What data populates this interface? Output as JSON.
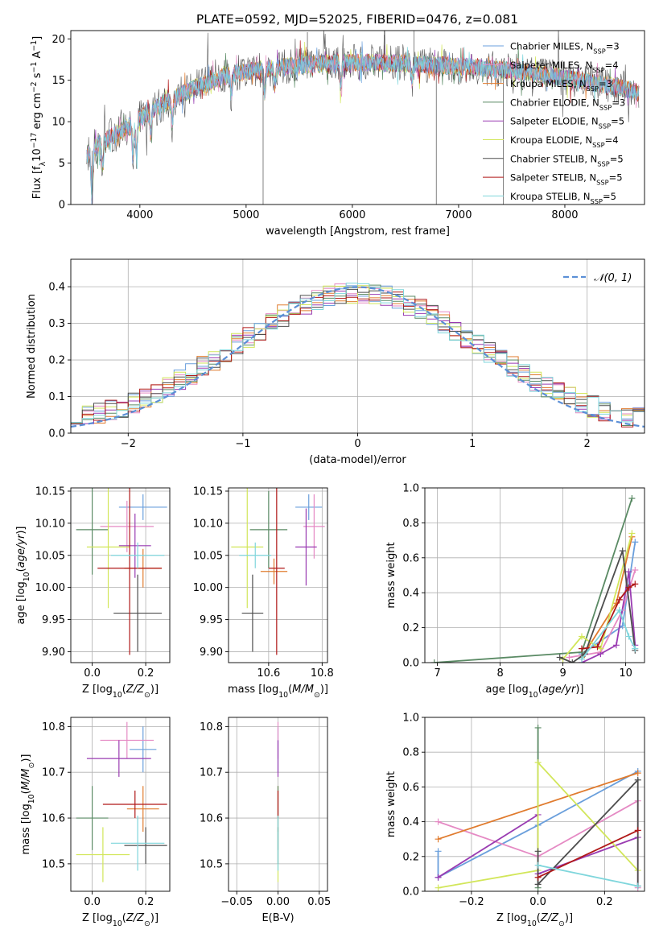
{
  "figure_title": "PLATE=0592, MJD=52025, FIBERID=0476, z=0.081",
  "colors": {
    "Chabrier MILES": "#6a9fdc",
    "Salpeter MILES": "#e58ac4",
    "Kroupa MILES": "#e07b2e",
    "Chabrier ELODIE": "#5a8a64",
    "Salpeter ELODIE": "#9a3cb2",
    "Kroupa ELODIE": "#d2e65a",
    "Chabrier STELIB": "#4d4d4d",
    "Salpeter STELIB": "#b01818",
    "Kroupa STELIB": "#7fd6dc",
    "normal_curve": "#5b8fd6",
    "grid": "#b0b0b0"
  },
  "chart_data": [
    {
      "id": "spectrum",
      "type": "line",
      "title": "PLATE=0592, MJD=52025, FIBERID=0476, z=0.081",
      "xlabel": "wavelength [Angstrom, rest frame]",
      "ylabel": "Flux [f_λ 10^-17 erg cm^-2 s^-1 A^-1]",
      "xlim": [
        3350,
        8750
      ],
      "ylim": [
        0,
        21
      ],
      "xticks": [
        4000,
        5000,
        6000,
        7000,
        8000
      ],
      "yticks": [
        0,
        5,
        10,
        15,
        20
      ],
      "grid": false,
      "legend_position": "right",
      "legend": [
        {
          "model": "Chabrier MILES",
          "imf": "Chabrier",
          "lib": "MILES",
          "n": "3"
        },
        {
          "model": "Salpeter MILES",
          "imf": "Salpeter",
          "lib": "MILES",
          "n": "4"
        },
        {
          "model": "Kroupa MILES",
          "imf": "Kroupa",
          "lib": "MILES",
          "n": "3"
        },
        {
          "model": "Chabrier ELODIE",
          "imf": "Chabrier",
          "lib": "ELODIE",
          "n": "3"
        },
        {
          "model": "Salpeter ELODIE",
          "imf": "Salpeter",
          "lib": "ELODIE",
          "n": "5"
        },
        {
          "model": "Kroupa ELODIE",
          "imf": "Kroupa",
          "lib": "ELODIE",
          "n": "4"
        },
        {
          "model": "Chabrier STELIB",
          "imf": "Chabrier",
          "lib": "STELIB",
          "n": "5"
        },
        {
          "model": "Salpeter STELIB",
          "imf": "Salpeter",
          "lib": "STELIB",
          "n": "5"
        },
        {
          "model": "Kroupa STELIB",
          "imf": "Kroupa",
          "lib": "STELIB",
          "n": "5"
        }
      ],
      "continuum": [
        [
          3500,
          6.0
        ],
        [
          3700,
          8.0
        ],
        [
          3900,
          9.5
        ],
        [
          4000,
          10.5
        ],
        [
          4200,
          12.0
        ],
        [
          4500,
          14.0
        ],
        [
          4800,
          15.5
        ],
        [
          5100,
          16.3
        ],
        [
          5500,
          16.8
        ],
        [
          6000,
          17.2
        ],
        [
          6500,
          17.0
        ],
        [
          7000,
          16.7
        ],
        [
          7500,
          16.2
        ],
        [
          8000,
          15.3
        ],
        [
          8500,
          14.2
        ],
        [
          8700,
          13.5
        ]
      ],
      "absorption_features": [
        {
          "x": 3550,
          "depth": 6
        },
        {
          "x": 3650,
          "depth": 3
        },
        {
          "x": 3934,
          "depth": 4
        },
        {
          "x": 3969,
          "depth": 4
        },
        {
          "x": 4102,
          "depth": 2.5
        },
        {
          "x": 4304,
          "depth": 3
        },
        {
          "x": 4861,
          "depth": 2.5
        },
        {
          "x": 5175,
          "depth": 3
        },
        {
          "x": 5270,
          "depth": 2
        },
        {
          "x": 5893,
          "depth": 3
        },
        {
          "x": 6563,
          "depth": 2
        }
      ],
      "spikes": [
        {
          "x": 3550,
          "to": 0
        },
        {
          "x": 5160,
          "to": 0
        },
        {
          "x": 5577,
          "to": 20.8
        },
        {
          "x": 6300,
          "to": 20.5
        },
        {
          "x": 6580,
          "to": 21
        },
        {
          "x": 6790,
          "to": 0
        },
        {
          "x": 7420,
          "to": 0
        }
      ]
    },
    {
      "id": "residuals",
      "type": "histogram",
      "xlabel": "(data-model)/error",
      "ylabel": "Normed distribution",
      "xlim": [
        -2.5,
        2.5
      ],
      "ylim": [
        0,
        0.475
      ],
      "xticks": [
        -2,
        -1,
        0,
        1,
        2
      ],
      "yticks": [
        0.0,
        0.1,
        0.2,
        0.3,
        0.4
      ],
      "grid": true,
      "bins": {
        "start": -2.5,
        "width": 0.1,
        "count": 50
      },
      "legend": [
        {
          "label": "𝒩(0, 1)"
        }
      ],
      "legend_position": "top-right",
      "reference_curve": "normal pdf, mean 0, sigma 1"
    },
    {
      "id": "z_age",
      "type": "errorbar",
      "xlabel": "Z [log10(Z/Z⊙)]",
      "ylabel": "age [log10(age/yr)]",
      "xlim": [
        -0.08,
        0.29
      ],
      "ylim": [
        9.883,
        10.155
      ],
      "xticks": [
        0.0,
        0.2
      ],
      "yticks": [
        9.9,
        9.95,
        10.0,
        10.05,
        10.1,
        10.15
      ],
      "grid": true,
      "points": [
        {
          "model": "Chabrier MILES",
          "x": 0.19,
          "xerr": 0.09,
          "y": 10.125,
          "yerr": 0.02
        },
        {
          "model": "Salpeter MILES",
          "x": 0.13,
          "xerr": 0.1,
          "y": 10.095,
          "yerr": 0.04
        },
        {
          "model": "Kroupa MILES",
          "x": 0.19,
          "xerr": 0.07,
          "y": 10.03,
          "yerr": 0.03
        },
        {
          "model": "Chabrier ELODIE",
          "x": 0.0,
          "xerr": 0.06,
          "y": 10.09,
          "yerr": 0.07
        },
        {
          "model": "Salpeter ELODIE",
          "x": 0.16,
          "xerr": 0.06,
          "y": 10.065,
          "yerr": 0.05
        },
        {
          "model": "Kroupa ELODIE",
          "x": 0.06,
          "xerr": 0.08,
          "y": 10.063,
          "yerr": 0.095
        },
        {
          "model": "Chabrier STELIB",
          "x": 0.17,
          "xerr": 0.09,
          "y": 9.96,
          "yerr": 0.06
        },
        {
          "model": "Salpeter STELIB",
          "x": 0.14,
          "xerr": 0.12,
          "y": 10.03,
          "yerr": 0.135
        },
        {
          "model": "Kroupa STELIB",
          "x": 0.17,
          "xerr": 0.1,
          "y": 10.05,
          "yerr": 0.02
        }
      ]
    },
    {
      "id": "mass_age",
      "type": "errorbar",
      "xlabel": "mass [log10(M/M⊙)]",
      "ylabel": "",
      "xlim": [
        10.45,
        10.82
      ],
      "ylim": [
        9.883,
        10.155
      ],
      "xticks": [
        10.6,
        10.8
      ],
      "yticks": [
        9.9,
        9.95,
        10.0,
        10.05,
        10.1,
        10.15
      ],
      "grid": true,
      "points": [
        {
          "model": "Chabrier MILES",
          "x": 10.75,
          "xerr": 0.05,
          "y": 10.125,
          "yerr": 0.02
        },
        {
          "model": "Salpeter MILES",
          "x": 10.77,
          "xerr": 0.04,
          "y": 10.095,
          "yerr": 0.05
        },
        {
          "model": "Kroupa MILES",
          "x": 10.62,
          "xerr": 0.05,
          "y": 10.025,
          "yerr": 0.02
        },
        {
          "model": "Chabrier ELODIE",
          "x": 10.6,
          "xerr": 0.07,
          "y": 10.09,
          "yerr": 0.06
        },
        {
          "model": "Salpeter ELODIE",
          "x": 10.74,
          "xerr": 0.04,
          "y": 10.063,
          "yerr": 0.06
        },
        {
          "model": "Kroupa ELODIE",
          "x": 10.52,
          "xerr": 0.06,
          "y": 10.063,
          "yerr": 0.095
        },
        {
          "model": "Chabrier STELIB",
          "x": 10.54,
          "xerr": 0.04,
          "y": 9.96,
          "yerr": 0.06
        },
        {
          "model": "Salpeter STELIB",
          "x": 10.63,
          "xerr": 0.03,
          "y": 10.03,
          "yerr": 0.135
        },
        {
          "model": "Kroupa STELIB",
          "x": 10.55,
          "xerr": 0.06,
          "y": 10.05,
          "yerr": 0.02
        }
      ]
    },
    {
      "id": "age_weight",
      "type": "line",
      "xlabel": "age [log10(age/yr)]",
      "ylabel": "mass weight",
      "xlim": [
        6.8,
        10.3
      ],
      "ylim": [
        0,
        1
      ],
      "xticks": [
        7,
        8,
        9,
        10
      ],
      "yticks": [
        0.0,
        0.2,
        0.4,
        0.6,
        0.8,
        1.0
      ],
      "grid": true,
      "series": [
        {
          "model": "Chabrier MILES",
          "points": [
            [
              9.3,
              0.05
            ],
            [
              9.95,
              0.21
            ],
            [
              10.15,
              0.69
            ]
          ]
        },
        {
          "model": "Salpeter MILES",
          "points": [
            [
              9.1,
              0.03
            ],
            [
              9.6,
              0.06
            ],
            [
              9.95,
              0.3
            ],
            [
              10.15,
              0.53
            ]
          ]
        },
        {
          "model": "Kroupa MILES",
          "points": [
            [
              9.3,
              0.03
            ],
            [
              9.85,
              0.34
            ],
            [
              10.1,
              0.72
            ]
          ]
        },
        {
          "model": "Chabrier ELODIE",
          "points": [
            [
              6.95,
              0.0
            ],
            [
              9.3,
              0.06
            ],
            [
              10.1,
              0.94
            ]
          ]
        },
        {
          "model": "Salpeter ELODIE",
          "points": [
            [
              9.3,
              0.0
            ],
            [
              9.6,
              0.05
            ],
            [
              9.85,
              0.1
            ],
            [
              10.05,
              0.52
            ],
            [
              10.15,
              0.1
            ]
          ]
        },
        {
          "model": "Kroupa ELODIE",
          "points": [
            [
              9.0,
              0.02
            ],
            [
              9.3,
              0.15
            ],
            [
              9.6,
              0.08
            ],
            [
              10.1,
              0.74
            ]
          ]
        },
        {
          "model": "Chabrier STELIB",
          "points": [
            [
              8.95,
              0.03
            ],
            [
              9.15,
              0.0
            ],
            [
              9.35,
              0.05
            ],
            [
              9.95,
              0.64
            ],
            [
              10.15,
              0.07
            ]
          ]
        },
        {
          "model": "Salpeter STELIB",
          "points": [
            [
              9.3,
              0.08
            ],
            [
              9.55,
              0.09
            ],
            [
              9.9,
              0.36
            ],
            [
              10.05,
              0.43
            ],
            [
              10.15,
              0.45
            ]
          ]
        },
        {
          "model": "Kroupa STELIB",
          "points": [
            [
              9.3,
              0.02
            ],
            [
              9.9,
              0.3
            ],
            [
              10.05,
              0.15
            ],
            [
              10.15,
              0.08
            ]
          ]
        }
      ]
    },
    {
      "id": "z_mass",
      "type": "errorbar",
      "xlabel": "Z [log10(Z/Z⊙)]",
      "ylabel": "mass [log10(M/M⊙)]",
      "xlim": [
        -0.08,
        0.29
      ],
      "ylim": [
        10.44,
        10.82
      ],
      "xticks": [
        0.0,
        0.2
      ],
      "yticks": [
        10.5,
        10.6,
        10.7,
        10.8
      ],
      "grid": true,
      "points": [
        {
          "model": "Chabrier MILES",
          "x": 0.19,
          "xerr": 0.05,
          "y": 10.75,
          "yerr": 0.05
        },
        {
          "model": "Salpeter MILES",
          "x": 0.13,
          "xerr": 0.1,
          "y": 10.77,
          "yerr": 0.04
        },
        {
          "model": "Kroupa MILES",
          "x": 0.19,
          "xerr": 0.06,
          "y": 10.62,
          "yerr": 0.05
        },
        {
          "model": "Chabrier ELODIE",
          "x": 0.0,
          "xerr": 0.06,
          "y": 10.6,
          "yerr": 0.07
        },
        {
          "model": "Salpeter ELODIE",
          "x": 0.1,
          "xerr": 0.12,
          "y": 10.73,
          "yerr": 0.04
        },
        {
          "model": "Kroupa ELODIE",
          "x": 0.04,
          "xerr": 0.1,
          "y": 10.52,
          "yerr": 0.06
        },
        {
          "model": "Chabrier STELIB",
          "x": 0.2,
          "xerr": 0.08,
          "y": 10.54,
          "yerr": 0.04
        },
        {
          "model": "Salpeter STELIB",
          "x": 0.16,
          "xerr": 0.12,
          "y": 10.63,
          "yerr": 0.03
        },
        {
          "model": "Kroupa STELIB",
          "x": 0.17,
          "xerr": 0.1,
          "y": 10.545,
          "yerr": 0.06
        }
      ]
    },
    {
      "id": "ebv_mass",
      "type": "errorbar",
      "xlabel": "E(B-V)",
      "ylabel": "",
      "xlim": [
        -0.06,
        0.06
      ],
      "ylim": [
        10.44,
        10.82
      ],
      "xticks": [
        -0.05,
        0.0,
        0.05
      ],
      "yticks": [
        10.5,
        10.6,
        10.7,
        10.8
      ],
      "grid": true,
      "points": [
        {
          "model": "Chabrier MILES",
          "x": 0.0,
          "xerr": 0.0,
          "y": 10.75,
          "yerr": 0.05
        },
        {
          "model": "Salpeter MILES",
          "x": 0.0,
          "xerr": 0.0,
          "y": 10.77,
          "yerr": 0.04
        },
        {
          "model": "Kroupa MILES",
          "x": 0.0,
          "xerr": 0.0,
          "y": 10.62,
          "yerr": 0.05
        },
        {
          "model": "Chabrier ELODIE",
          "x": 0.0,
          "xerr": 0.0,
          "y": 10.6,
          "yerr": 0.07
        },
        {
          "model": "Salpeter ELODIE",
          "x": 0.0,
          "xerr": 0.0,
          "y": 10.73,
          "yerr": 0.04
        },
        {
          "model": "Kroupa ELODIE",
          "x": 0.0,
          "xerr": 0.0,
          "y": 10.52,
          "yerr": 0.06
        },
        {
          "model": "Chabrier STELIB",
          "x": 0.0,
          "xerr": 0.0,
          "y": 10.54,
          "yerr": 0.04
        },
        {
          "model": "Salpeter STELIB",
          "x": 0.0,
          "xerr": 0.0,
          "y": 10.63,
          "yerr": 0.03
        },
        {
          "model": "Kroupa STELIB",
          "x": 0.0,
          "xerr": 0.0,
          "y": 10.545,
          "yerr": 0.06
        }
      ]
    },
    {
      "id": "z_weight",
      "type": "line",
      "xlabel": "Z [log10(Z/Z⊙)]",
      "ylabel": "mass weight",
      "xlim": [
        -0.34,
        0.32
      ],
      "ylim": [
        0,
        1
      ],
      "xticks": [
        -0.2,
        0.0,
        0.2
      ],
      "yticks": [
        0.0,
        0.2,
        0.4,
        0.6,
        0.8,
        1.0
      ],
      "grid": true,
      "series": [
        {
          "model": "Chabrier MILES",
          "points": [
            [
              -0.3,
              0.23
            ],
            [
              -0.3,
              0.08
            ],
            [
              0.0,
              0.38
            ],
            [
              0.3,
              0.69
            ]
          ]
        },
        {
          "model": "Salpeter MILES",
          "points": [
            [
              -0.3,
              0.4
            ],
            [
              0.0,
              0.2
            ],
            [
              0.3,
              0.52
            ],
            [
              0.3,
              0.02
            ]
          ]
        },
        {
          "model": "Kroupa MILES",
          "points": [
            [
              -0.3,
              0.3
            ],
            [
              0.3,
              0.68
            ]
          ]
        },
        {
          "model": "Chabrier ELODIE",
          "points": [
            [
              0.0,
              0.94
            ],
            [
              0.0,
              0.02
            ]
          ]
        },
        {
          "model": "Salpeter ELODIE",
          "points": [
            [
              -0.3,
              0.08
            ],
            [
              0.0,
              0.44
            ],
            [
              0.0,
              0.1
            ],
            [
              0.3,
              0.31
            ]
          ]
        },
        {
          "model": "Kroupa ELODIE",
          "points": [
            [
              -0.3,
              0.02
            ],
            [
              0.0,
              0.12
            ],
            [
              0.0,
              0.74
            ],
            [
              0.3,
              0.12
            ]
          ]
        },
        {
          "model": "Chabrier STELIB",
          "points": [
            [
              0.0,
              0.23
            ],
            [
              0.0,
              0.04
            ],
            [
              0.3,
              0.64
            ],
            [
              0.3,
              0.03
            ]
          ]
        },
        {
          "model": "Salpeter STELIB",
          "points": [
            [
              0.0,
              0.08
            ],
            [
              0.3,
              0.35
            ]
          ]
        },
        {
          "model": "Kroupa STELIB",
          "points": [
            [
              0.0,
              0.15
            ],
            [
              0.3,
              0.03
            ]
          ]
        }
      ]
    }
  ]
}
